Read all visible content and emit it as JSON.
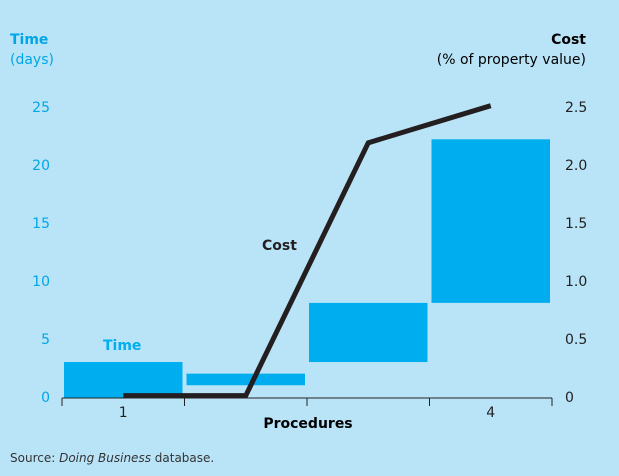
{
  "chart_data": {
    "type": "floating-bar-line",
    "y_title": "Time",
    "y_unit": "(days)",
    "y2_title": "Cost",
    "y2_unit": "(% of property value)",
    "x_label": "Procedures",
    "categories": [
      "1",
      null,
      null,
      "4"
    ],
    "ylim": [
      0,
      25
    ],
    "yticks": [
      0,
      5,
      10,
      15,
      20,
      25
    ],
    "y2lim": [
      0,
      2.5
    ],
    "y2ticks": [
      0,
      0.5,
      {
        "value": 1,
        "label": "1.0"
      },
      1.5,
      {
        "value": 2,
        "label": "2.0"
      },
      2.5
    ],
    "series": [
      {
        "name": "Time",
        "color": "#00aeef",
        "ranges": [
          [
            0,
            3.1
          ],
          [
            1.1,
            2.1
          ],
          [
            3.1,
            8.2
          ],
          [
            8.2,
            22.3
          ]
        ]
      },
      {
        "name": "Cost",
        "color": "#231f20",
        "axis": "y2",
        "values": [
          0.02,
          0.02,
          2.2,
          2.52
        ]
      }
    ],
    "source": [
      "Source: ",
      "Doing Business",
      " database."
    ]
  }
}
